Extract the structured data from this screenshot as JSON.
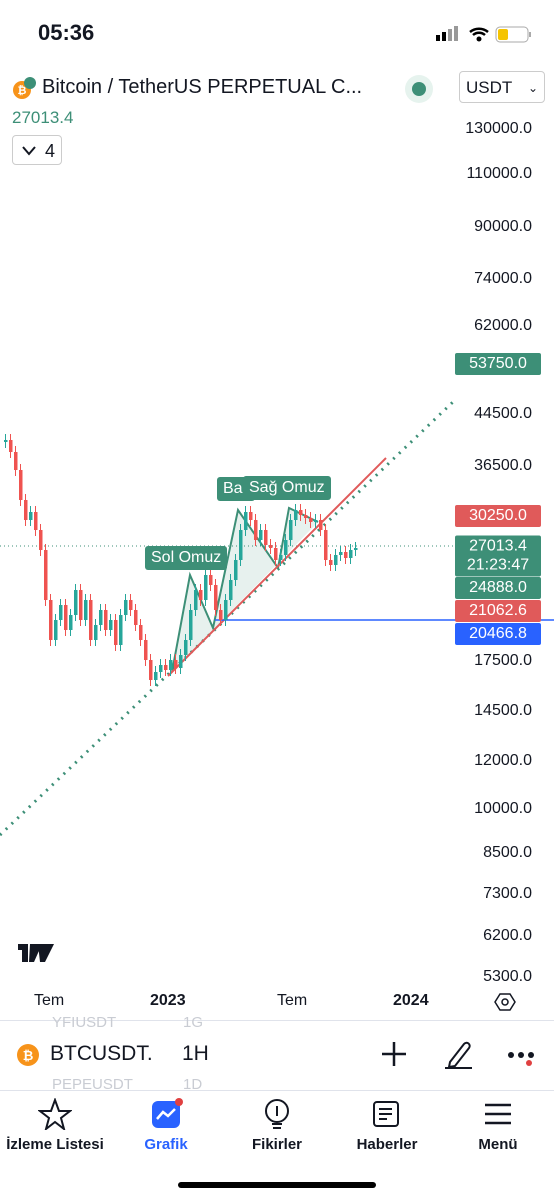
{
  "status_bar": {
    "time": "05:36"
  },
  "header": {
    "symbol": "Bitcoin / TetherUS PERPETUAL C...",
    "price": "27013.4",
    "indicator_count": "4",
    "currency": "USDT"
  },
  "price_axis": [
    "130000.0",
    "110000.0",
    "90000.0",
    "74000.0",
    "62000.0",
    "44500.0",
    "36500.0",
    "17500.0",
    "14500.0",
    "12000.0",
    "10000.0",
    "8500.0",
    "7300.0",
    "6200.0",
    "5300.0"
  ],
  "price_tags": [
    {
      "label": "53750.0",
      "color": "#3d8f77"
    },
    {
      "label": "30250.0",
      "color": "#e05a5a"
    },
    {
      "label": "27013.4",
      "sub": "21:23:47",
      "color": "#3d8f77"
    },
    {
      "label": "24888.0",
      "color": "#3d8f77"
    },
    {
      "label": "21062.6",
      "color": "#e05a5a"
    },
    {
      "label": "20466.8",
      "color": "#2962ff"
    }
  ],
  "annotations": [
    "Sol Omuz",
    "Ba",
    "Sağ Omuz"
  ],
  "time_axis": [
    "Tem",
    "2023",
    "Tem",
    "2024"
  ],
  "watchlist_ghost": [
    "YFIUSDT",
    "1G",
    "PEPEUSDT",
    "1D"
  ],
  "symbol_bar": {
    "symbol": "BTCUSDT.",
    "interval": "1H"
  },
  "tabs": [
    "İzleme Listesi",
    "Grafik",
    "Fikirler",
    "Haberler",
    "Menü"
  ]
}
